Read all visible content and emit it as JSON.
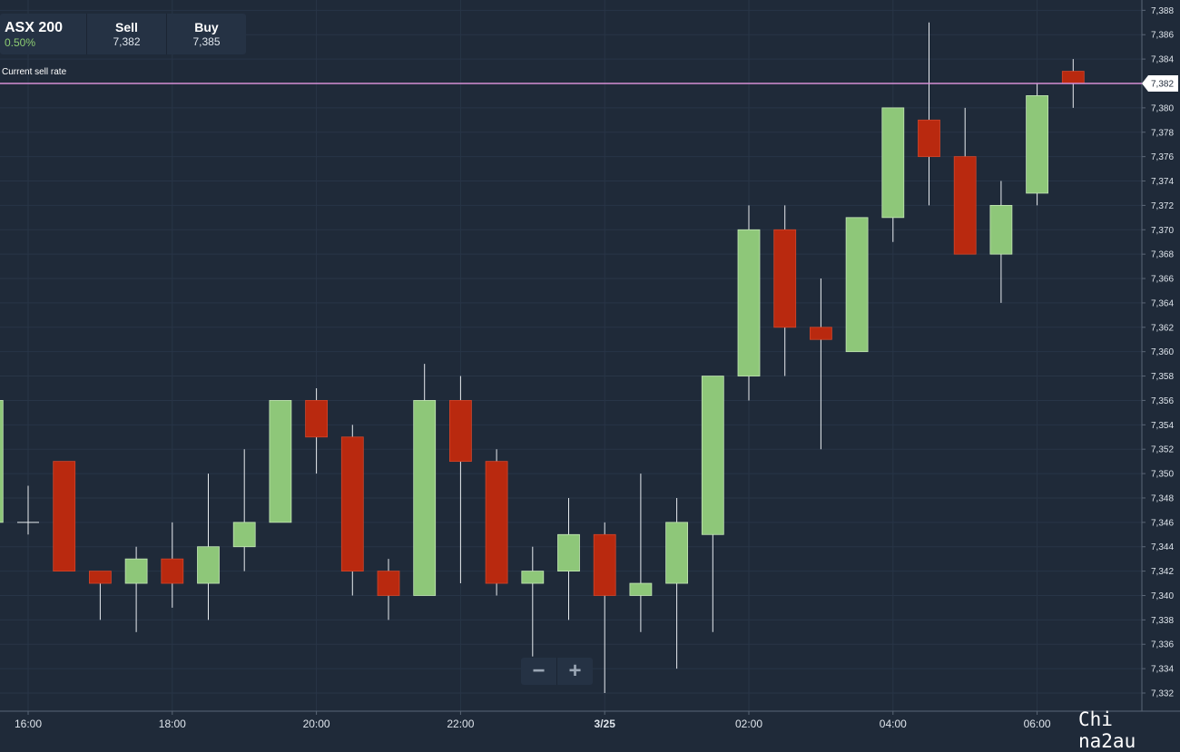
{
  "ticker": {
    "symbol": "ASX 200",
    "change": "0.50%",
    "sell_label": "Sell",
    "sell_value": "7,382",
    "buy_label": "Buy",
    "buy_value": "7,385"
  },
  "current_rate_label": "Current sell rate",
  "current_rate_value": "7,382",
  "zoom": {
    "minus": "−",
    "plus": "+"
  },
  "watermark": "Chi na2au",
  "colors": {
    "background": "#1f2a39",
    "up": "#8ec779",
    "down": "#b9290f",
    "rate_line": "#d68fd6"
  },
  "chart_data": {
    "type": "candlestick",
    "y_range": [
      7331,
      7389
    ],
    "y_ticks": [
      "7,332",
      "7,334",
      "7,336",
      "7,338",
      "7,340",
      "7,342",
      "7,344",
      "7,346",
      "7,348",
      "7,350",
      "7,352",
      "7,354",
      "7,356",
      "7,358",
      "7,360",
      "7,362",
      "7,364",
      "7,366",
      "7,368",
      "7,370",
      "7,372",
      "7,374",
      "7,376",
      "7,378",
      "7,380",
      "7,382",
      "7,384",
      "7,386",
      "7,388"
    ],
    "x_ticks": [
      "16:00",
      "18:00",
      "20:00",
      "22:00",
      "3/25",
      "02:00",
      "04:00",
      "06:00"
    ],
    "current_rate": 7382,
    "candles": [
      {
        "time": "15:30",
        "open": 7346,
        "high": 7364,
        "low": 7345,
        "close": 7356
      },
      {
        "time": "16:00",
        "open": 7346,
        "high": 7349,
        "low": 7345,
        "close": 7346
      },
      {
        "time": "16:30",
        "open": 7351,
        "high": 7351,
        "low": 7342,
        "close": 7342
      },
      {
        "time": "17:00",
        "open": 7342,
        "high": 7342,
        "low": 7338,
        "close": 7341
      },
      {
        "time": "17:30",
        "open": 7341,
        "high": 7344,
        "low": 7337,
        "close": 7343
      },
      {
        "time": "18:00",
        "open": 7343,
        "high": 7346,
        "low": 7339,
        "close": 7341
      },
      {
        "time": "18:30",
        "open": 7341,
        "high": 7350,
        "low": 7338,
        "close": 7344
      },
      {
        "time": "19:00",
        "open": 7344,
        "high": 7352,
        "low": 7342,
        "close": 7346
      },
      {
        "time": "19:30",
        "open": 7346,
        "high": 7356,
        "low": 7346,
        "close": 7356
      },
      {
        "time": "20:00",
        "open": 7356,
        "high": 7357,
        "low": 7350,
        "close": 7353
      },
      {
        "time": "20:30",
        "open": 7353,
        "high": 7354,
        "low": 7340,
        "close": 7342
      },
      {
        "time": "21:00",
        "open": 7342,
        "high": 7343,
        "low": 7338,
        "close": 7340
      },
      {
        "time": "21:30",
        "open": 7340,
        "high": 7359,
        "low": 7340,
        "close": 7356
      },
      {
        "time": "22:00",
        "open": 7356,
        "high": 7358,
        "low": 7341,
        "close": 7351
      },
      {
        "time": "22:30",
        "open": 7351,
        "high": 7352,
        "low": 7340,
        "close": 7341
      },
      {
        "time": "23:00",
        "open": 7341,
        "high": 7344,
        "low": 7335,
        "close": 7342
      },
      {
        "time": "23:30",
        "open": 7342,
        "high": 7348,
        "low": 7338,
        "close": 7345
      },
      {
        "time": "00:00",
        "open": 7345,
        "high": 7346,
        "low": 7332,
        "close": 7340
      },
      {
        "time": "00:30",
        "open": 7340,
        "high": 7350,
        "low": 7337,
        "close": 7341
      },
      {
        "time": "01:00",
        "open": 7341,
        "high": 7348,
        "low": 7334,
        "close": 7346
      },
      {
        "time": "01:30",
        "open": 7345,
        "high": 7358,
        "low": 7337,
        "close": 7358
      },
      {
        "time": "02:00",
        "open": 7358,
        "high": 7372,
        "low": 7356,
        "close": 7370
      },
      {
        "time": "02:30",
        "open": 7370,
        "high": 7372,
        "low": 7358,
        "close": 7362
      },
      {
        "time": "03:00",
        "open": 7362,
        "high": 7366,
        "low": 7352,
        "close": 7361
      },
      {
        "time": "03:30",
        "open": 7360,
        "high": 7371,
        "low": 7360,
        "close": 7371
      },
      {
        "time": "04:00",
        "open": 7371,
        "high": 7380,
        "low": 7369,
        "close": 7380
      },
      {
        "time": "04:30",
        "open": 7379,
        "high": 7387,
        "low": 7372,
        "close": 7376
      },
      {
        "time": "05:00",
        "open": 7376,
        "high": 7380,
        "low": 7368,
        "close": 7368
      },
      {
        "time": "05:30",
        "open": 7368,
        "high": 7374,
        "low": 7364,
        "close": 7372
      },
      {
        "time": "06:00",
        "open": 7373,
        "high": 7382,
        "low": 7372,
        "close": 7381
      },
      {
        "time": "06:30",
        "open": 7383,
        "high": 7384,
        "low": 7380,
        "close": 7382
      }
    ]
  }
}
